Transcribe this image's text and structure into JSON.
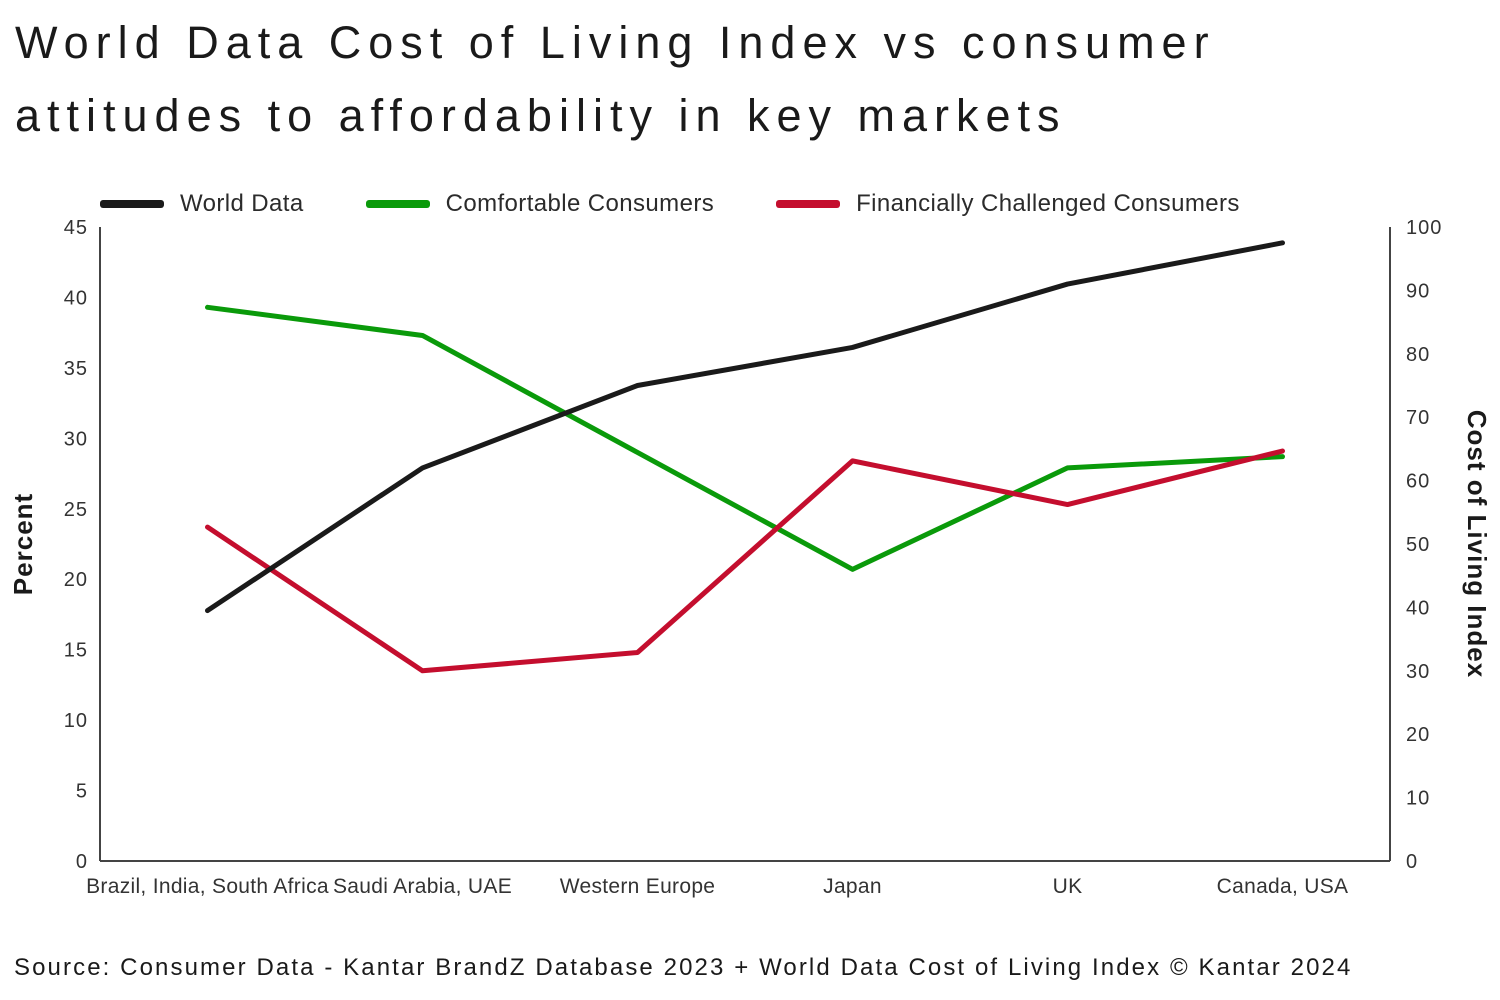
{
  "title": "World Data Cost of Living Index vs consumer attitudes to affordability in key markets",
  "source": "Source: Consumer Data - Kantar BrandZ Database 2023 + World Data Cost of Living Index © Kantar 2024",
  "colors": {
    "black": "#1a1a1a",
    "green": "#0a9a0a",
    "red": "#c40e2e",
    "axis": "#444444",
    "tick_text": "#333333"
  },
  "chart_data": {
    "type": "line",
    "categories": [
      "Brazil, India, South Africa",
      "Saudi Arabia, UAE",
      "Western Europe",
      "Japan",
      "UK",
      "Canada, USA"
    ],
    "series": [
      {
        "name": "World Data",
        "axis": "right",
        "color_key": "black",
        "z": 3,
        "values": [
          39.5,
          62,
          75,
          81,
          91,
          97.5
        ]
      },
      {
        "name": "Comfortable Consumers",
        "axis": "left",
        "color_key": "green",
        "z": 1,
        "values": [
          39.3,
          37.3,
          29,
          20.7,
          27.9,
          28.7
        ]
      },
      {
        "name": "Financially Challenged Consumers",
        "axis": "left",
        "color_key": "red",
        "z": 2,
        "values": [
          23.7,
          13.5,
          14.8,
          28.4,
          25.3,
          29.1
        ]
      }
    ],
    "left_axis": {
      "label": "Percent",
      "min": 0,
      "max": 45,
      "step": 5,
      "ticks": [
        "0",
        "5",
        "10",
        "15",
        "20",
        "25",
        "30",
        "35",
        "40",
        "45"
      ]
    },
    "right_axis": {
      "label": "Cost of Living Index",
      "min": 0,
      "max": 100,
      "step": 10,
      "ticks": [
        "0",
        "10",
        "20",
        "30",
        "40",
        "50",
        "60",
        "70",
        "80",
        "90",
        "100"
      ]
    },
    "grid": false,
    "legend_position": "top"
  }
}
